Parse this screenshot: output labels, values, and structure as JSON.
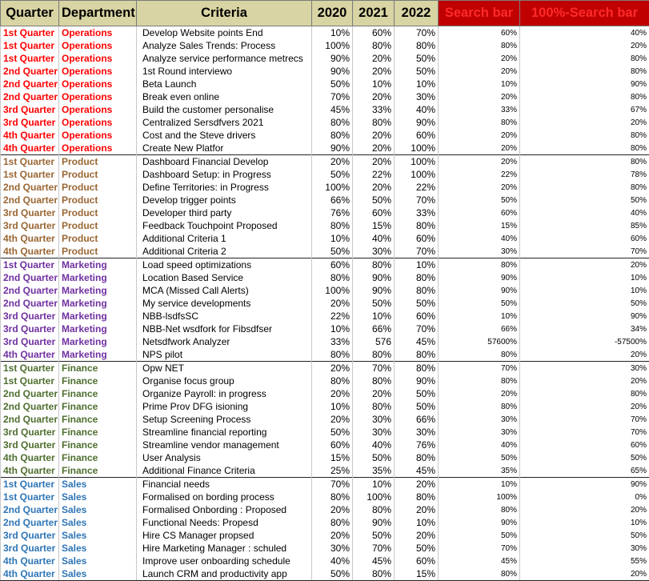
{
  "headers": [
    "Quarter",
    "Department",
    "Criteria",
    "2020",
    "2021",
    "2022",
    "Search bar",
    "100%-Search bar"
  ],
  "dept_colors": {
    "Operations": "#ff0000",
    "Product": "#996633",
    "Marketing": "#7030a0",
    "Finance": "#4e6e2e",
    "Sales": "#2e75b6"
  },
  "rows": [
    {
      "quarter": "1st Quarter",
      "dept": "Operations",
      "criteria": "Develop Website points End",
      "y2020": "10%",
      "y2021": "60%",
      "y2022": "70%",
      "search": "60%",
      "inv": "40%"
    },
    {
      "quarter": "1st Quarter",
      "dept": "Operations",
      "criteria": "Analyze Sales Trends: Process",
      "y2020": "100%",
      "y2021": "80%",
      "y2022": "80%",
      "search": "80%",
      "inv": "20%"
    },
    {
      "quarter": "1st Quarter",
      "dept": "Operations",
      "criteria": "Analyze service performance metrecs",
      "y2020": "90%",
      "y2021": "20%",
      "y2022": "50%",
      "search": "20%",
      "inv": "80%"
    },
    {
      "quarter": "2nd Quarter",
      "dept": "Operations",
      "criteria": "1st Round interviewo",
      "y2020": "90%",
      "y2021": "20%",
      "y2022": "50%",
      "search": "20%",
      "inv": "80%"
    },
    {
      "quarter": "2nd Quarter",
      "dept": "Operations",
      "criteria": "Beta Launch",
      "y2020": "50%",
      "y2021": "10%",
      "y2022": "10%",
      "search": "10%",
      "inv": "90%"
    },
    {
      "quarter": "2nd Quarter",
      "dept": "Operations",
      "criteria": "Break even online",
      "y2020": "70%",
      "y2021": "20%",
      "y2022": "30%",
      "search": "20%",
      "inv": "80%"
    },
    {
      "quarter": "3rd Quarter",
      "dept": "Operations",
      "criteria": "Build the customer personalise",
      "y2020": "45%",
      "y2021": "33%",
      "y2022": "40%",
      "search": "33%",
      "inv": "67%"
    },
    {
      "quarter": "3rd Quarter",
      "dept": "Operations",
      "criteria": "Centralized Sersdfvers 2021",
      "y2020": "80%",
      "y2021": "80%",
      "y2022": "90%",
      "search": "80%",
      "inv": "20%"
    },
    {
      "quarter": "4th Quarter",
      "dept": "Operations",
      "criteria": "Cost and the Steve drivers",
      "y2020": "80%",
      "y2021": "20%",
      "y2022": "60%",
      "search": "20%",
      "inv": "80%"
    },
    {
      "quarter": "4th Quarter",
      "dept": "Operations",
      "criteria": "Create New Platfor",
      "y2020": "90%",
      "y2021": "20%",
      "y2022": "100%",
      "search": "20%",
      "inv": "80%"
    },
    {
      "quarter": "1st Quarter",
      "dept": "Product",
      "criteria": "Dashboard Financial Develop",
      "y2020": "20%",
      "y2021": "20%",
      "y2022": "100%",
      "search": "20%",
      "inv": "80%"
    },
    {
      "quarter": "1st Quarter",
      "dept": "Product",
      "criteria": "Dashboard Setup: in Progress",
      "y2020": "50%",
      "y2021": "22%",
      "y2022": "100%",
      "search": "22%",
      "inv": "78%"
    },
    {
      "quarter": "2nd Quarter",
      "dept": "Product",
      "criteria": "Define Territories: in Progress",
      "y2020": "100%",
      "y2021": "20%",
      "y2022": "22%",
      "search": "20%",
      "inv": "80%"
    },
    {
      "quarter": "2nd Quarter",
      "dept": "Product",
      "criteria": "Develop trigger points",
      "y2020": "66%",
      "y2021": "50%",
      "y2022": "70%",
      "search": "50%",
      "inv": "50%"
    },
    {
      "quarter": "3rd Quarter",
      "dept": "Product",
      "criteria": "Developer third party",
      "y2020": "76%",
      "y2021": "60%",
      "y2022": "33%",
      "search": "60%",
      "inv": "40%"
    },
    {
      "quarter": "3rd Quarter",
      "dept": "Product",
      "criteria": "Feedback Touchpoint Proposed",
      "y2020": "80%",
      "y2021": "15%",
      "y2022": "80%",
      "search": "15%",
      "inv": "85%"
    },
    {
      "quarter": "4th Quarter",
      "dept": "Product",
      "criteria": "Additional Criteria 1",
      "y2020": "10%",
      "y2021": "40%",
      "y2022": "60%",
      "search": "40%",
      "inv": "60%"
    },
    {
      "quarter": "4th Quarter",
      "dept": "Product",
      "criteria": "Additional Criteria 2",
      "y2020": "50%",
      "y2021": "30%",
      "y2022": "70%",
      "search": "30%",
      "inv": "70%"
    },
    {
      "quarter": "1st Quarter",
      "dept": "Marketing",
      "criteria": "Load speed optimizations",
      "y2020": "60%",
      "y2021": "80%",
      "y2022": "10%",
      "search": "80%",
      "inv": "20%"
    },
    {
      "quarter": "2nd Quarter",
      "dept": "Marketing",
      "criteria": "Location Based Service",
      "y2020": "80%",
      "y2021": "90%",
      "y2022": "80%",
      "search": "90%",
      "inv": "10%"
    },
    {
      "quarter": "2nd Quarter",
      "dept": "Marketing",
      "criteria": "MCA (Missed Call Alerts)",
      "y2020": "100%",
      "y2021": "90%",
      "y2022": "80%",
      "search": "90%",
      "inv": "10%"
    },
    {
      "quarter": "2nd Quarter",
      "dept": "Marketing",
      "criteria": "My service developments",
      "y2020": "20%",
      "y2021": "50%",
      "y2022": "50%",
      "search": "50%",
      "inv": "50%"
    },
    {
      "quarter": "3rd Quarter",
      "dept": "Marketing",
      "criteria": "NBB-lsdfsSC",
      "y2020": "22%",
      "y2021": "10%",
      "y2022": "60%",
      "search": "10%",
      "inv": "90%"
    },
    {
      "quarter": "3rd Quarter",
      "dept": "Marketing",
      "criteria": "NBB-Net wsdfork for Fibsdfser",
      "y2020": "10%",
      "y2021": "66%",
      "y2022": "70%",
      "search": "66%",
      "inv": "34%"
    },
    {
      "quarter": "3rd Quarter",
      "dept": "Marketing",
      "criteria": "Netsdfwork Analyzer",
      "y2020": "33%",
      "y2021": "576",
      "y2022": "45%",
      "search": "57600%",
      "inv": "-57500%"
    },
    {
      "quarter": "4th Quarter",
      "dept": "Marketing",
      "criteria": "NPS pilot",
      "y2020": "80%",
      "y2021": "80%",
      "y2022": "80%",
      "search": "80%",
      "inv": "20%"
    },
    {
      "quarter": "1st Quarter",
      "dept": "Finance",
      "criteria": "Opw NET",
      "y2020": "20%",
      "y2021": "70%",
      "y2022": "80%",
      "search": "70%",
      "inv": "30%"
    },
    {
      "quarter": "1st Quarter",
      "dept": "Finance",
      "criteria": "Organise focus group",
      "y2020": "80%",
      "y2021": "80%",
      "y2022": "90%",
      "search": "80%",
      "inv": "20%"
    },
    {
      "quarter": "2nd Quarter",
      "dept": "Finance",
      "criteria": "Organize Payroll: in progress",
      "y2020": "20%",
      "y2021": "20%",
      "y2022": "50%",
      "search": "20%",
      "inv": "80%"
    },
    {
      "quarter": "2nd Quarter",
      "dept": "Finance",
      "criteria": "Prime Prov DFG isioning",
      "y2020": "10%",
      "y2021": "80%",
      "y2022": "50%",
      "search": "80%",
      "inv": "20%"
    },
    {
      "quarter": "2nd Quarter",
      "dept": "Finance",
      "criteria": "Setup Screening Process",
      "y2020": "20%",
      "y2021": "30%",
      "y2022": "66%",
      "search": "30%",
      "inv": "70%"
    },
    {
      "quarter": "3rd Quarter",
      "dept": "Finance",
      "criteria": "Streamline financial reporting",
      "y2020": "50%",
      "y2021": "30%",
      "y2022": "30%",
      "search": "30%",
      "inv": "70%"
    },
    {
      "quarter": "3rd Quarter",
      "dept": "Finance",
      "criteria": "Streamline vendor management",
      "y2020": "60%",
      "y2021": "40%",
      "y2022": "76%",
      "search": "40%",
      "inv": "60%"
    },
    {
      "quarter": "4th Quarter",
      "dept": "Finance",
      "criteria": "User Analysis",
      "y2020": "15%",
      "y2021": "50%",
      "y2022": "80%",
      "search": "50%",
      "inv": "50%"
    },
    {
      "quarter": "4th Quarter",
      "dept": "Finance",
      "criteria": "Additional Finance Criteria",
      "y2020": "25%",
      "y2021": "35%",
      "y2022": "45%",
      "search": "35%",
      "inv": "65%"
    },
    {
      "quarter": "1st Quarter",
      "dept": "Sales",
      "criteria": "Financial needs",
      "y2020": "70%",
      "y2021": "10%",
      "y2022": "20%",
      "search": "10%",
      "inv": "90%"
    },
    {
      "quarter": "1st Quarter",
      "dept": "Sales",
      "criteria": "Formalised on bording process",
      "y2020": "80%",
      "y2021": "100%",
      "y2022": "80%",
      "search": "100%",
      "inv": "0%"
    },
    {
      "quarter": "2nd Quarter",
      "dept": "Sales",
      "criteria": "Formalised Onbording : Proposed",
      "y2020": "20%",
      "y2021": "80%",
      "y2022": "20%",
      "search": "80%",
      "inv": "20%"
    },
    {
      "quarter": "2nd Quarter",
      "dept": "Sales",
      "criteria": "Functional Needs: Propesd",
      "y2020": "80%",
      "y2021": "90%",
      "y2022": "10%",
      "search": "90%",
      "inv": "10%"
    },
    {
      "quarter": "3rd Quarter",
      "dept": "Sales",
      "criteria": "Hire CS Manager propsed",
      "y2020": "20%",
      "y2021": "50%",
      "y2022": "20%",
      "search": "50%",
      "inv": "50%"
    },
    {
      "quarter": "3rd Quarter",
      "dept": "Sales",
      "criteria": "Hire Marketing Manager : schuled",
      "y2020": "30%",
      "y2021": "70%",
      "y2022": "50%",
      "search": "70%",
      "inv": "30%"
    },
    {
      "quarter": "4th Quarter",
      "dept": "Sales",
      "criteria": "Improve user onboarding schedule",
      "y2020": "40%",
      "y2021": "45%",
      "y2022": "60%",
      "search": "45%",
      "inv": "55%"
    },
    {
      "quarter": "4th Quarter",
      "dept": "Sales",
      "criteria": "Launch CRM and productivity app",
      "y2020": "50%",
      "y2021": "80%",
      "y2022": "15%",
      "search": "80%",
      "inv": "20%"
    }
  ]
}
